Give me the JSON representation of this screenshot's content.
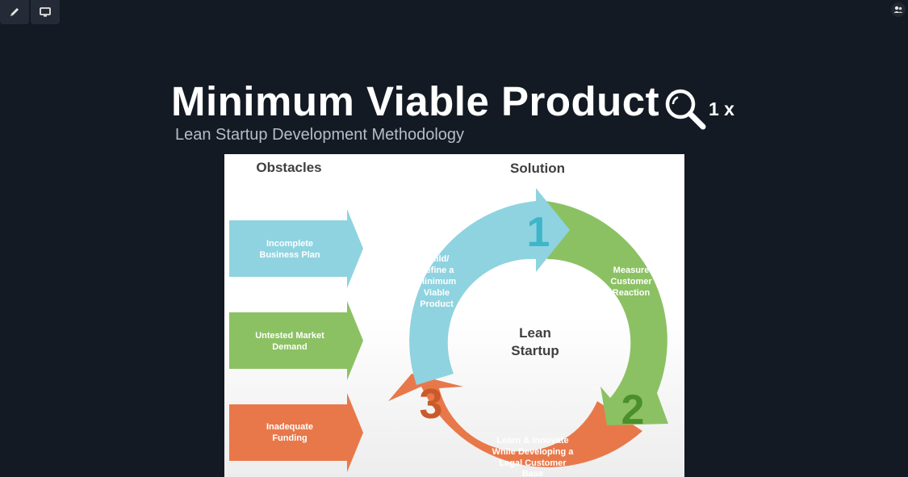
{
  "toolbar": {
    "pen_icon": "pen-icon",
    "screen_icon": "screen-icon",
    "users_icon": "users-icon"
  },
  "slide": {
    "title": "Minimum Viable Product",
    "subtitle": "Lean Startup Development Methodology",
    "zoom_label": "1 x"
  },
  "diagram": {
    "obstacles_heading": "Obstacles",
    "solution_heading": "Solution",
    "obstacles": [
      {
        "line1": "Incomplete",
        "line2": "Business Plan",
        "color": "#8fd3e0"
      },
      {
        "line1": "Untested Market",
        "line2": "Demand",
        "color": "#8bc163"
      },
      {
        "line1": "Inadequate",
        "line2": "Funding",
        "color": "#e8784a"
      }
    ],
    "center_line1": "Lean",
    "center_line2": "Startup",
    "step1_number": "1",
    "step2_number": "2",
    "step3_number": "3",
    "step1_lines": [
      "Build/",
      "Refine a",
      "Minimum",
      "Viable",
      "Product"
    ],
    "step2_lines": [
      "Measure",
      "Customer",
      "Reaction"
    ],
    "step3_lines": [
      "Learn & Innovate",
      "While Developing a",
      "Legal Customer",
      "Base"
    ],
    "colors": {
      "blue": "#8fd3e0",
      "green": "#8bc163",
      "orange": "#e8784a"
    }
  }
}
